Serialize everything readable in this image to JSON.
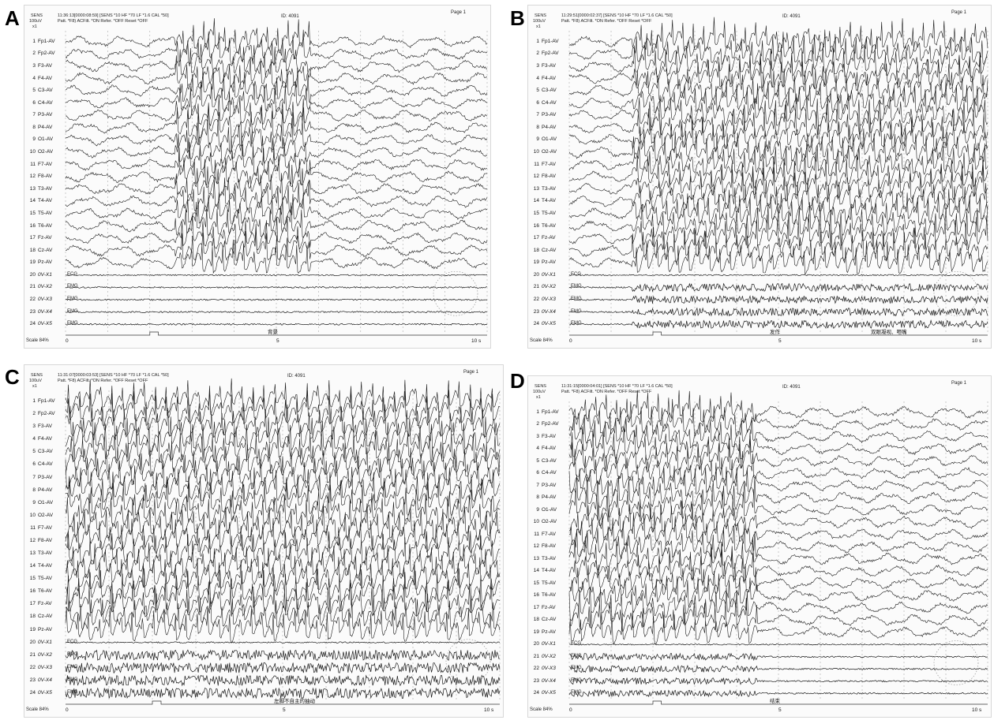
{
  "panels": [
    {
      "letter": "A",
      "header_line1": "11:36:13[0000:08:59]   [SENS *10  HF *70  LF *1.6  CAL *50]",
      "header_line2": "Patt. *F8)  ACFilt. *ON  Refer. *OFF  Reset *OFF",
      "sens_label": "SENS",
      "sens_value": "100uV",
      "sens_mult": "x1",
      "id": "ID:  4091",
      "page": "Page   1",
      "scale": "Scale  84%",
      "sec0": "0",
      "sec5": "5",
      "sec10": "10 s",
      "annotation": "背景",
      "annotation2": "",
      "seizure_start": 0.26,
      "seizure_end": 0.58,
      "emg_burst": 0.0
    },
    {
      "letter": "B",
      "header_line1": "11:29:51[0000:02:37]   [SENS *10  HF *70  LF *1.6  CAL *50]",
      "header_line2": "Patt. *F8)  ACFilt. *ON  Refer. *OFF  Reset *OFF",
      "sens_label": "SENS",
      "sens_value": "100uV",
      "sens_mult": "x1",
      "id": "ID:  4091",
      "page": "Page   1",
      "scale": "Scale  84%",
      "sec0": "0",
      "sec5": "5",
      "sec10": "10 s",
      "annotation": "发作",
      "annotation2": "双眼凝视、咂嘴",
      "seizure_start": 0.15,
      "seizure_end": 1.0,
      "emg_burst": 0.7
    },
    {
      "letter": "C",
      "header_line1": "11:31:07[0000:03:53]   [SENS *10  HF *70  LF *1.6  CAL *50]",
      "header_line2": "Patt. *F8)  ACFilt. *ON  Refer. *OFF  Reset *OFF",
      "sens_label": "SENS",
      "sens_value": "100uV",
      "sens_mult": "x1",
      "id": "ID:  4091",
      "page": "Page   1",
      "scale": "Scale  84%",
      "sec0": "0",
      "sec5": "5",
      "sec10": "10 s",
      "annotation": "左脚不自主的抽动",
      "annotation2": "",
      "seizure_start": 0.0,
      "seizure_end": 1.0,
      "emg_burst": 0.9
    },
    {
      "letter": "D",
      "header_line1": "11:31:15[0000:04:01]   [SENS *10  HF *70  LF *1.6  CAL *50]",
      "header_line2": "Patt. *F8)  ACFilt. *ON  Refer. *OFF  Reset *OFF",
      "sens_label": "SENS",
      "sens_value": "100uV",
      "sens_mult": "x1",
      "id": "ID:  4091",
      "page": "Page   1",
      "scale": "Scale  84%",
      "sec0": "0",
      "sec5": "5",
      "sec10": "10 s",
      "annotation": "结束",
      "annotation2": "",
      "seizure_start": 0.0,
      "seizure_end": 0.45,
      "emg_burst": 0.6
    }
  ],
  "channels": [
    {
      "num": "1",
      "name": "Fp1-AV"
    },
    {
      "num": "2",
      "name": "Fp2-AV"
    },
    {
      "num": "3",
      "name": "F3-AV"
    },
    {
      "num": "4",
      "name": "F4-AV"
    },
    {
      "num": "5",
      "name": "C3-AV"
    },
    {
      "num": "6",
      "name": "C4-AV"
    },
    {
      "num": "7",
      "name": "P3-AV"
    },
    {
      "num": "8",
      "name": "P4-AV"
    },
    {
      "num": "9",
      "name": "O1-AV"
    },
    {
      "num": "10",
      "name": "O2-AV"
    },
    {
      "num": "11",
      "name": "F7-AV"
    },
    {
      "num": "12",
      "name": "F8-AV"
    },
    {
      "num": "13",
      "name": "T3-AV"
    },
    {
      "num": "14",
      "name": "T4-AV"
    },
    {
      "num": "15",
      "name": "T5-AV"
    },
    {
      "num": "16",
      "name": "T6-AV"
    },
    {
      "num": "17",
      "name": "Fz-AV"
    },
    {
      "num": "18",
      "name": "Cz-AV"
    },
    {
      "num": "19",
      "name": "Pz-AV"
    },
    {
      "num": "20",
      "name": "0V-X1"
    },
    {
      "num": "21",
      "name": "0V-X2"
    },
    {
      "num": "22",
      "name": "0V-X3"
    },
    {
      "num": "23",
      "name": "0V-X4"
    },
    {
      "num": "24",
      "name": "0V-X5"
    }
  ],
  "aux_tags": [
    "ECG",
    "EMG",
    "EMG",
    "EMG",
    "EMG"
  ],
  "colors": {
    "trace": "#1a1a1a",
    "grid": "#9a9a9a",
    "paper": "#fbfbfb"
  }
}
